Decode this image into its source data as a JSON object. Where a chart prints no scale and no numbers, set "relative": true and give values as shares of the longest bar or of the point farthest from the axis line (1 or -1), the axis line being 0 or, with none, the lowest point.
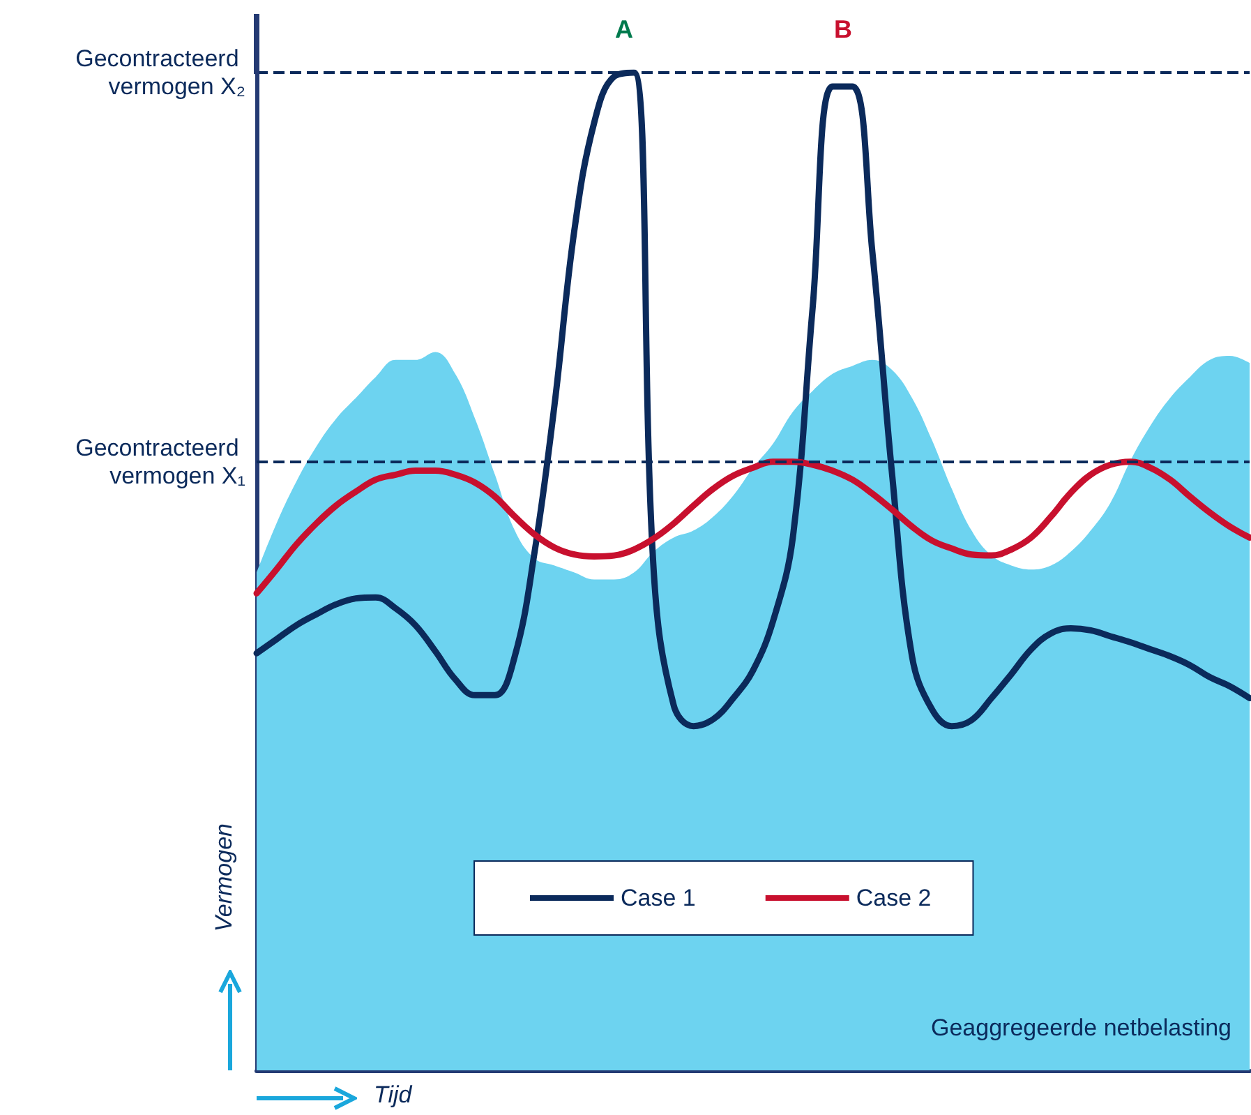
{
  "chart_data": {
    "type": "line",
    "relative": true,
    "xlabel": "Tijd",
    "ylabel": "Vermogen",
    "categories": [
      null,
      null,
      null,
      null,
      null,
      null,
      null,
      null,
      null,
      null,
      null,
      null,
      null,
      null,
      null,
      null,
      null,
      null,
      null,
      null,
      null,
      null,
      null,
      null,
      null,
      null,
      null,
      null,
      null,
      null,
      null,
      null,
      null,
      null,
      null,
      null,
      null,
      null,
      null,
      null,
      null,
      null,
      null,
      null,
      null,
      null,
      null,
      null,
      null,
      null,
      null
    ],
    "series": [
      {
        "name": "Geaggregeerde netbelasting",
        "type": "area",
        "color": "#6dd3f0",
        "values": [
          0.499,
          0.548,
          0.59,
          0.625,
          0.653,
          0.674,
          0.695,
          0.712,
          0.712,
          0.72,
          0.698,
          0.653,
          0.597,
          0.541,
          0.513,
          0.506,
          0.499,
          0.492,
          0.492,
          0.499,
          0.52,
          0.534,
          0.541,
          0.555,
          0.576,
          0.604,
          0.628,
          0.66,
          0.681,
          0.698,
          0.706,
          0.712,
          0.702,
          0.674,
          0.632,
          0.583,
          0.541,
          0.516,
          0.506,
          0.502,
          0.506,
          0.52,
          0.541,
          0.569,
          0.611,
          0.646,
          0.674,
          0.695,
          0.712,
          0.716,
          0.709
        ]
      },
      {
        "name": "Case 1",
        "color": "#0b2a5b",
        "values": [
          0.418,
          0.432,
          0.446,
          0.457,
          0.467,
          0.473,
          0.474,
          0.463,
          0.446,
          0.42,
          0.392,
          0.376,
          0.376,
          0.415,
          0.52,
          0.667,
          0.842,
          0.95,
          0.996,
          1,
          0.499,
          0.366,
          0.345,
          0.352,
          0.373,
          0.401,
          0.45,
          0.534,
          0.765,
          0.986,
          0.986,
          0.821,
          0.597,
          0.415,
          0.362,
          0.345,
          0.351,
          0.373,
          0.397,
          0.422,
          0.438,
          0.443,
          0.441,
          0.435,
          0.429,
          0.422,
          0.415,
          0.406,
          0.394,
          0.385,
          0.373
        ]
      },
      {
        "name": "Case 2",
        "color": "#c8102e",
        "values": [
          0.478,
          0.502,
          0.527,
          0.548,
          0.566,
          0.58,
          0.592,
          0.597,
          0.601,
          0.601,
          0.597,
          0.589,
          0.575,
          0.555,
          0.537,
          0.524,
          0.517,
          0.515,
          0.516,
          0.522,
          0.533,
          0.548,
          0.566,
          0.583,
          0.596,
          0.604,
          0.61,
          0.61,
          0.607,
          0.601,
          0.592,
          0.578,
          0.562,
          0.545,
          0.531,
          0.523,
          0.517,
          0.516,
          0.522,
          0.534,
          0.555,
          0.579,
          0.597,
          0.607,
          0.61,
          0.604,
          0.592,
          0.575,
          0.559,
          0.545,
          0.534
        ]
      }
    ],
    "ref_lines": [
      {
        "axis": "y",
        "value": 1,
        "label": "Gecontracteerd vermogen X₂",
        "color": "#0b2a5b",
        "line_style": "dashed"
      },
      {
        "axis": "y",
        "value": 0.61,
        "label": "Gecontracteerd vermogen X₁",
        "color": "#0b2a5b",
        "line_style": "dashed"
      }
    ],
    "annotations": [
      "A",
      "B"
    ],
    "legend": "bottom",
    "tick_labels": false,
    "marker": "none",
    "line_style": "solid",
    "grid": false
  }
}
